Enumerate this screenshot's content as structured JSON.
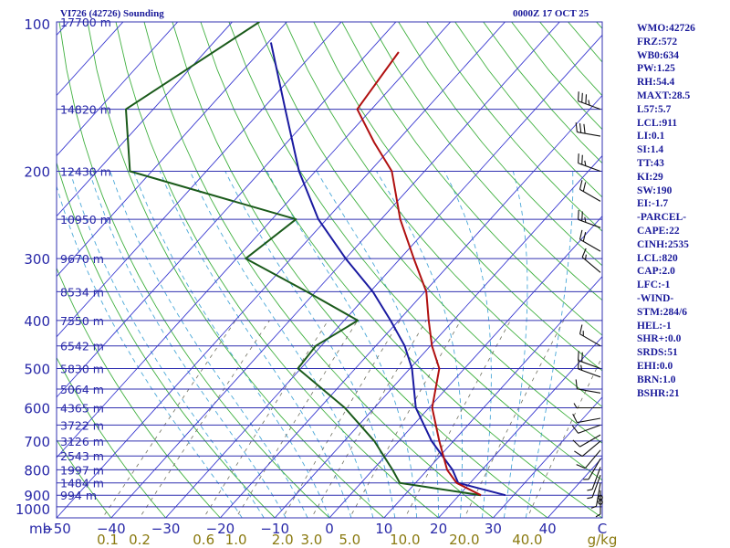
{
  "header": {
    "station_title": "VI726 (42726) Sounding",
    "time_label": "0000Z 17 OCT 25"
  },
  "indices": [
    "WMO:42726",
    "FRZ:572",
    "WB0:634",
    "PW:1.25",
    "RH:54.4",
    "MAXT:28.5",
    "L57:5.7",
    "LCL:911",
    "LI:0.1",
    "SI:1.4",
    "TT:43",
    "KI:29",
    "SW:190",
    "EI:-1.7",
    "-PARCEL-",
    "CAPE:22",
    "CINH:2535",
    "LCL:820",
    "CAP:2.0",
    "LFC:-1",
    "-WIND-",
    "STM:284/6",
    "HEL:-1",
    "SHR+:0.0",
    "SRDS:51",
    "EHI:0.0",
    "BRN:1.0",
    "BSHR:21"
  ],
  "colors": {
    "isobar": "#3030b0",
    "isotherm": "#3a3ad0",
    "dry_adiabat": "#40b040",
    "moist_adiabat": "#4aa8d8",
    "mixing_ratio": "#707060",
    "temperature": "#b01010",
    "dewpoint": "#1a5a1a",
    "parcel": "#1a1aa0",
    "wind": "#101010",
    "axis_text": "#2828a8",
    "mixing_text": "#8a7a10",
    "panel_text": "#1a1a9a"
  },
  "chart_data": {
    "type": "skew-t",
    "title": "VI726 (42726) Sounding",
    "time": "0000Z 17 OCT 25",
    "pressure_unit": "mb",
    "temperature_unit": "°C",
    "mixing_ratio_unit": "g/kg",
    "pressure_range": [
      1000,
      100
    ],
    "temperature_range": [
      -50,
      50
    ],
    "pressure_labels": [
      100,
      200,
      300,
      400,
      500,
      600,
      700,
      800,
      900,
      1000
    ],
    "temperature_labels": [
      "-50",
      "-40",
      "-30",
      "-20",
      "-10",
      "0",
      "10",
      "20",
      "30",
      "40",
      "C"
    ],
    "temperature_label_values": [
      -50,
      -40,
      -30,
      -20,
      -10,
      0,
      10,
      20,
      30,
      40
    ],
    "mixing_ratio_labels": [
      "0.1",
      "0.2",
      "0.6",
      "1.0",
      "2.0",
      "3.0",
      "5.0",
      "10.0",
      "20.0",
      "40.0",
      "g/kg"
    ],
    "heights": [
      {
        "p": 100,
        "label": "17700 m"
      },
      {
        "p": 150,
        "label": "14820 m"
      },
      {
        "p": 200,
        "label": "12430 m"
      },
      {
        "p": 250,
        "label": "10950 m"
      },
      {
        "p": 300,
        "label": "9670 m"
      },
      {
        "p": 350,
        "label": "8534 m"
      },
      {
        "p": 400,
        "label": "7550 m"
      },
      {
        "p": 450,
        "label": "6542 m"
      },
      {
        "p": 500,
        "label": "5830 m"
      },
      {
        "p": 550,
        "label": "5064 m"
      },
      {
        "p": 600,
        "label": "4365 m"
      },
      {
        "p": 650,
        "label": "3722 m"
      },
      {
        "p": 700,
        "label": "3126 m"
      },
      {
        "p": 750,
        "label": "2543 m"
      },
      {
        "p": 800,
        "label": "1997 m"
      },
      {
        "p": 850,
        "label": "1484 m"
      },
      {
        "p": 900,
        "label": "994 m"
      }
    ],
    "temperature_profile": [
      [
        115,
        -64.5
      ],
      [
        150,
        -62.6
      ],
      [
        175,
        -54
      ],
      [
        200,
        -46
      ],
      [
        250,
        -36.5
      ],
      [
        300,
        -27.5
      ],
      [
        350,
        -19.7
      ],
      [
        400,
        -14.5
      ],
      [
        450,
        -9.7
      ],
      [
        500,
        -4.6
      ],
      [
        600,
        0.6
      ],
      [
        700,
        7.4
      ],
      [
        800,
        13.6
      ],
      [
        850,
        17.5
      ],
      [
        900,
        24
      ]
    ],
    "dewpoint_profile": [
      [
        100,
        -95
      ],
      [
        150,
        -105
      ],
      [
        200,
        -94
      ],
      [
        250,
        -55.6
      ],
      [
        300,
        -58.3
      ],
      [
        350,
        -41.6
      ],
      [
        400,
        -27.5
      ],
      [
        450,
        -31
      ],
      [
        500,
        -30.5
      ],
      [
        600,
        -15.4
      ],
      [
        700,
        -4.5
      ],
      [
        800,
        3.6
      ],
      [
        850,
        7.1
      ],
      [
        900,
        24
      ]
    ],
    "parcel_profile": [
      [
        110,
        -89.5
      ],
      [
        150,
        -75.8
      ],
      [
        200,
        -63
      ],
      [
        250,
        -51.5
      ],
      [
        300,
        -40
      ],
      [
        350,
        -29.5
      ],
      [
        400,
        -21.5
      ],
      [
        450,
        -14.7
      ],
      [
        500,
        -9.6
      ],
      [
        600,
        -2.4
      ],
      [
        700,
        6
      ],
      [
        800,
        14.6
      ],
      [
        850,
        17.8
      ],
      [
        900,
        28.5
      ]
    ],
    "wind_barbs": [
      {
        "p": 150,
        "dir": 290,
        "spd": 35
      },
      {
        "p": 170,
        "dir": 280,
        "spd": 30
      },
      {
        "p": 200,
        "dir": 290,
        "spd": 25
      },
      {
        "p": 230,
        "dir": 300,
        "spd": 20
      },
      {
        "p": 260,
        "dir": 290,
        "spd": 25
      },
      {
        "p": 290,
        "dir": 300,
        "spd": 20
      },
      {
        "p": 320,
        "dir": 310,
        "spd": 15
      },
      {
        "p": 450,
        "dir": 300,
        "spd": 15
      },
      {
        "p": 500,
        "dir": 290,
        "spd": 20
      },
      {
        "p": 520,
        "dir": 290,
        "spd": 15
      },
      {
        "p": 560,
        "dir": 280,
        "spd": 10
      },
      {
        "p": 600,
        "dir": 270,
        "spd": 5
      },
      {
        "p": 630,
        "dir": 260,
        "spd": 10
      },
      {
        "p": 650,
        "dir": 250,
        "spd": 10
      },
      {
        "p": 680,
        "dir": 240,
        "spd": 10
      },
      {
        "p": 700,
        "dir": 230,
        "spd": 10
      },
      {
        "p": 730,
        "dir": 220,
        "spd": 10
      },
      {
        "p": 760,
        "dir": 210,
        "spd": 5
      },
      {
        "p": 790,
        "dir": 200,
        "spd": 5
      },
      {
        "p": 820,
        "dir": 200,
        "spd": 5
      },
      {
        "p": 850,
        "dir": 190,
        "spd": 5
      },
      {
        "p": 880,
        "dir": 180,
        "spd": 5
      },
      {
        "p": 910,
        "dir": 0,
        "spd": 0
      },
      {
        "p": 930,
        "dir": 0,
        "spd": 0
      }
    ]
  }
}
